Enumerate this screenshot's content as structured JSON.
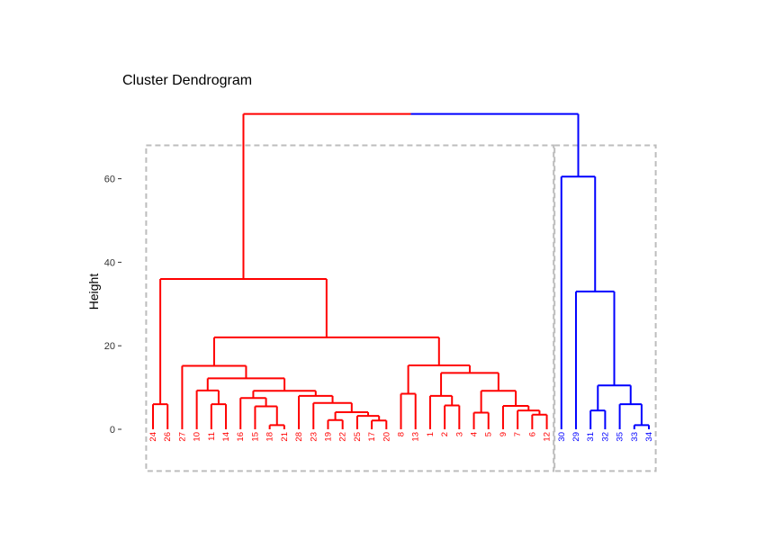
{
  "chart_data": {
    "type": "dendrogram",
    "title": "Cluster Dendrogram",
    "xlabel": "",
    "ylabel": "Height",
    "y_ticks": [
      0,
      20,
      40,
      60
    ],
    "ylim": [
      -10,
      75
    ],
    "colors": {
      "cluster1": "#ff0000",
      "cluster2": "#0000ff",
      "rect": "#bdbdbd",
      "axis": "#333333"
    },
    "leaves": [
      "24",
      "26",
      "27",
      "10",
      "11",
      "14",
      "16",
      "15",
      "18",
      "21",
      "28",
      "23",
      "19",
      "22",
      "25",
      "17",
      "20",
      "8",
      "13",
      "1",
      "2",
      "3",
      "4",
      "5",
      "9",
      "7",
      "6",
      "12",
      "30",
      "29",
      "31",
      "32",
      "35",
      "33",
      "34"
    ],
    "leaf_clusters": [
      1,
      1,
      1,
      1,
      1,
      1,
      1,
      1,
      1,
      1,
      1,
      1,
      1,
      1,
      1,
      1,
      1,
      1,
      1,
      1,
      1,
      1,
      1,
      1,
      1,
      1,
      1,
      1,
      2,
      2,
      2,
      2,
      2,
      2,
      2
    ],
    "merges": [
      {
        "a": "24",
        "b": "26",
        "height": 6.0
      },
      {
        "a": "11",
        "b": "14",
        "height": 6.0
      },
      {
        "a": "10",
        "b": "11+14",
        "height": 9.3
      },
      {
        "a": "18",
        "b": "21",
        "height": 1.0
      },
      {
        "a": "15",
        "b": "18+21",
        "height": 5.5
      },
      {
        "a": "16",
        "b": "15+18+21",
        "height": 7.5
      },
      {
        "a": "19",
        "b": "22",
        "height": 2.2
      },
      {
        "a": "17",
        "b": "20",
        "height": 2.1
      },
      {
        "a": "25",
        "b": "17+20",
        "height": 3.2
      },
      {
        "a": "19+22",
        "b": "25+17+20",
        "height": 4.1
      },
      {
        "a": "23",
        "b": "19+22+25+17+20",
        "height": 6.3
      },
      {
        "a": "28",
        "b": "23+19+22+25+17+20",
        "height": 8.0
      },
      {
        "a": "16+15+18+21",
        "b": "28+23+19+22+25+17+20",
        "height": 9.2
      },
      {
        "a": "10+11+14",
        "b": "16+...+20",
        "height": 12.2
      },
      {
        "a": "27",
        "b": "10+...+20",
        "height": 15.2
      },
      {
        "a": "8",
        "b": "13",
        "height": 8.5
      },
      {
        "a": "2",
        "b": "3",
        "height": 5.7
      },
      {
        "a": "1",
        "b": "2+3",
        "height": 8.0
      },
      {
        "a": "4",
        "b": "5",
        "height": 4.0
      },
      {
        "a": "6",
        "b": "12",
        "height": 3.5
      },
      {
        "a": "7",
        "b": "6+12",
        "height": 4.5
      },
      {
        "a": "9",
        "b": "7+6+12",
        "height": 5.6
      },
      {
        "a": "4+5",
        "b": "9+7+6+12",
        "height": 9.2
      },
      {
        "a": "1+2+3",
        "b": "4+5+9+7+6+12",
        "height": 13.5
      },
      {
        "a": "8+13",
        "b": "1+...+12",
        "height": 15.3
      },
      {
        "a": "27+...+20",
        "b": "8+...+12",
        "height": 22.0
      },
      {
        "a": "24+26",
        "b": "27+...+12",
        "height": 36.0
      },
      {
        "a": "33",
        "b": "34",
        "height": 1.0
      },
      {
        "a": "35",
        "b": "33+34",
        "height": 6.0
      },
      {
        "a": "31",
        "b": "32",
        "height": 4.5
      },
      {
        "a": "31+32",
        "b": "35+33+34",
        "height": 10.5
      },
      {
        "a": "29",
        "b": "31+32+35+33+34",
        "height": 33.0
      },
      {
        "a": "30",
        "b": "29+31+32+35+33+34",
        "height": 60.5
      },
      {
        "a": "cluster1",
        "b": "cluster2",
        "height": 75.5
      }
    ]
  }
}
